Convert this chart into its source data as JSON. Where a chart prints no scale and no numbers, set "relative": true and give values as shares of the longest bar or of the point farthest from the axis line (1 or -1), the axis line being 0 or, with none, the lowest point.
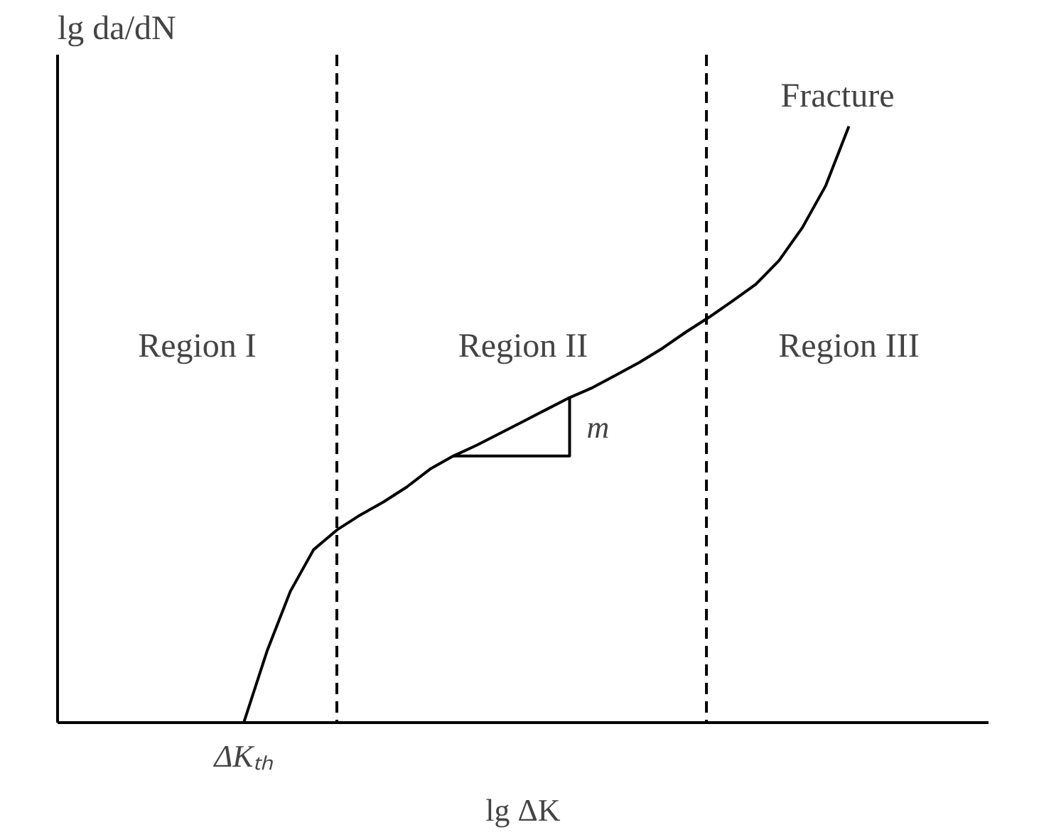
{
  "chart_data": {
    "type": "line",
    "relative": true,
    "xlabel": "lg ΔK",
    "ylabel": "lg da/dN",
    "categories": [
      null,
      null,
      null,
      null,
      null,
      null,
      null,
      null,
      null,
      null,
      null,
      null,
      null,
      null,
      null,
      null,
      null,
      null,
      null,
      null,
      null,
      null,
      null,
      null,
      null,
      null,
      null,
      null,
      null,
      null,
      null,
      null,
      null,
      null,
      null,
      null,
      null,
      null,
      null,
      null,
      null
    ],
    "series": [
      {
        "color": "#000000",
        "values": [
          null,
          null,
          null,
          null,
          null,
          null,
          null,
          null,
          0,
          0.12,
          0.22,
          0.29,
          0.323,
          0.348,
          0.37,
          0.395,
          0.425,
          0.447,
          0.465,
          0.485,
          0.505,
          0.525,
          0.545,
          0.562,
          0.583,
          0.604,
          0.628,
          0.655,
          0.68,
          0.707,
          0.735,
          0.775,
          0.83,
          0.9,
          1.0,
          null,
          null,
          null,
          null,
          null,
          null
        ]
      }
    ],
    "annotations": [
      "Region I",
      "Region II",
      "Region III",
      "Fracture",
      "m",
      "ΔKₜₕ"
    ],
    "grid": false,
    "marker": "none",
    "line_style": "solid"
  }
}
